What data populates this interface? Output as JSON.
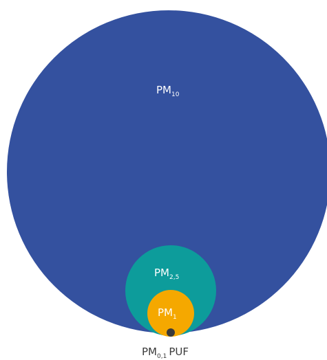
{
  "circles": [
    {
      "id": "pm10",
      "label_main": "PM",
      "label_sub": "10",
      "color": "#34519f"
    },
    {
      "id": "pm25",
      "label_main": "PM",
      "label_sub": "2,5",
      "color": "#0d9c9b"
    },
    {
      "id": "pm1",
      "label_main": "PM",
      "label_sub": "1",
      "color": "#f5a800"
    },
    {
      "id": "pm01",
      "label_main": "PM",
      "label_sub": "0,1",
      "label_suffix": "PUF",
      "color": "#3a3a3a"
    }
  ]
}
